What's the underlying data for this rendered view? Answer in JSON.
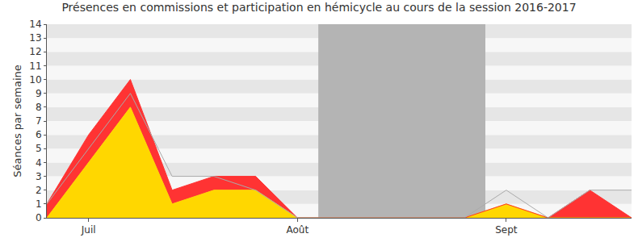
{
  "chart_data": {
    "type": "area",
    "title": "Présences en commissions et participation en hémicycle au cours de la session 2016-2017",
    "y_label": "Séances par semaine",
    "categories": [
      null,
      "Juil",
      null,
      null,
      null,
      null,
      "Août",
      null,
      null,
      null,
      null,
      "Sept",
      null,
      null,
      null
    ],
    "series": [
      {
        "type": "area",
        "color": "#ffd700",
        "values": [
          0,
          4,
          8,
          1,
          2,
          2,
          0,
          0,
          0,
          0,
          0,
          1,
          0,
          0,
          0
        ]
      },
      {
        "type": "area",
        "color": "#ff3333",
        "values": [
          1,
          2,
          2,
          1,
          1,
          1,
          0,
          0,
          0,
          0,
          0,
          0,
          0,
          2,
          0
        ]
      },
      {
        "type": "line",
        "color": "#aaaaaa",
        "values": [
          1,
          5,
          9,
          3,
          3,
          2,
          0,
          0,
          0,
          0,
          0,
          2,
          0,
          2,
          2
        ]
      }
    ],
    "stacked": true,
    "shaded": {
      "from": 6.5,
      "to": 10.5,
      "color": "#b4b4b4"
    },
    "ylim": [
      0,
      14
    ],
    "yticks": [
      0,
      1,
      2,
      3,
      4,
      5,
      6,
      7,
      8,
      9,
      10,
      11,
      12,
      13,
      14
    ],
    "grid": true
  }
}
